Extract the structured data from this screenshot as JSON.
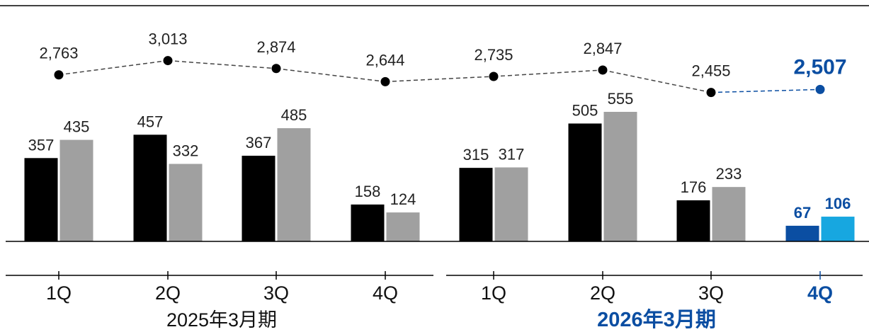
{
  "chart_data": {
    "type": "bar",
    "periods": [
      {
        "label": "2025年3月期",
        "quarters": [
          "1Q",
          "2Q",
          "3Q",
          "4Q"
        ]
      },
      {
        "label": "2026年3月期",
        "quarters": [
          "1Q",
          "2Q",
          "3Q",
          "4Q"
        ]
      }
    ],
    "categories": [
      "1Q",
      "2Q",
      "3Q",
      "4Q",
      "1Q",
      "2Q",
      "3Q",
      "4Q"
    ],
    "series": [
      {
        "values": [
          357,
          457,
          367,
          158,
          315,
          505,
          176,
          67
        ]
      },
      {
        "values": [
          435,
          332,
          485,
          124,
          317,
          555,
          233,
          106
        ]
      }
    ],
    "line_series": {
      "values": [
        2763,
        3013,
        2874,
        2644,
        2735,
        2847,
        2455,
        2507
      ],
      "style": "dashed"
    },
    "value_labels": {
      "bar_a": [
        "357",
        "457",
        "367",
        "158",
        "315",
        "505",
        "176",
        "67"
      ],
      "bar_b": [
        "435",
        "332",
        "485",
        "124",
        "317",
        "555",
        "233",
        "106"
      ],
      "line": [
        "2,763",
        "3,013",
        "2,874",
        "2,644",
        "2,735",
        "2,847",
        "2,455",
        "2,507"
      ]
    },
    "highlight_index": 7,
    "bar_ylim": [
      0,
      600
    ],
    "line_ylim": [
      2400,
      3100
    ],
    "colors": {
      "bar_a": "#000000",
      "bar_b": "#a0a0a0",
      "line": "#444444",
      "highlight_a": "#0b4ea2",
      "highlight_b": "#17a7e0",
      "highlight_text": "#0b4ea2",
      "axis": "#000000"
    }
  }
}
